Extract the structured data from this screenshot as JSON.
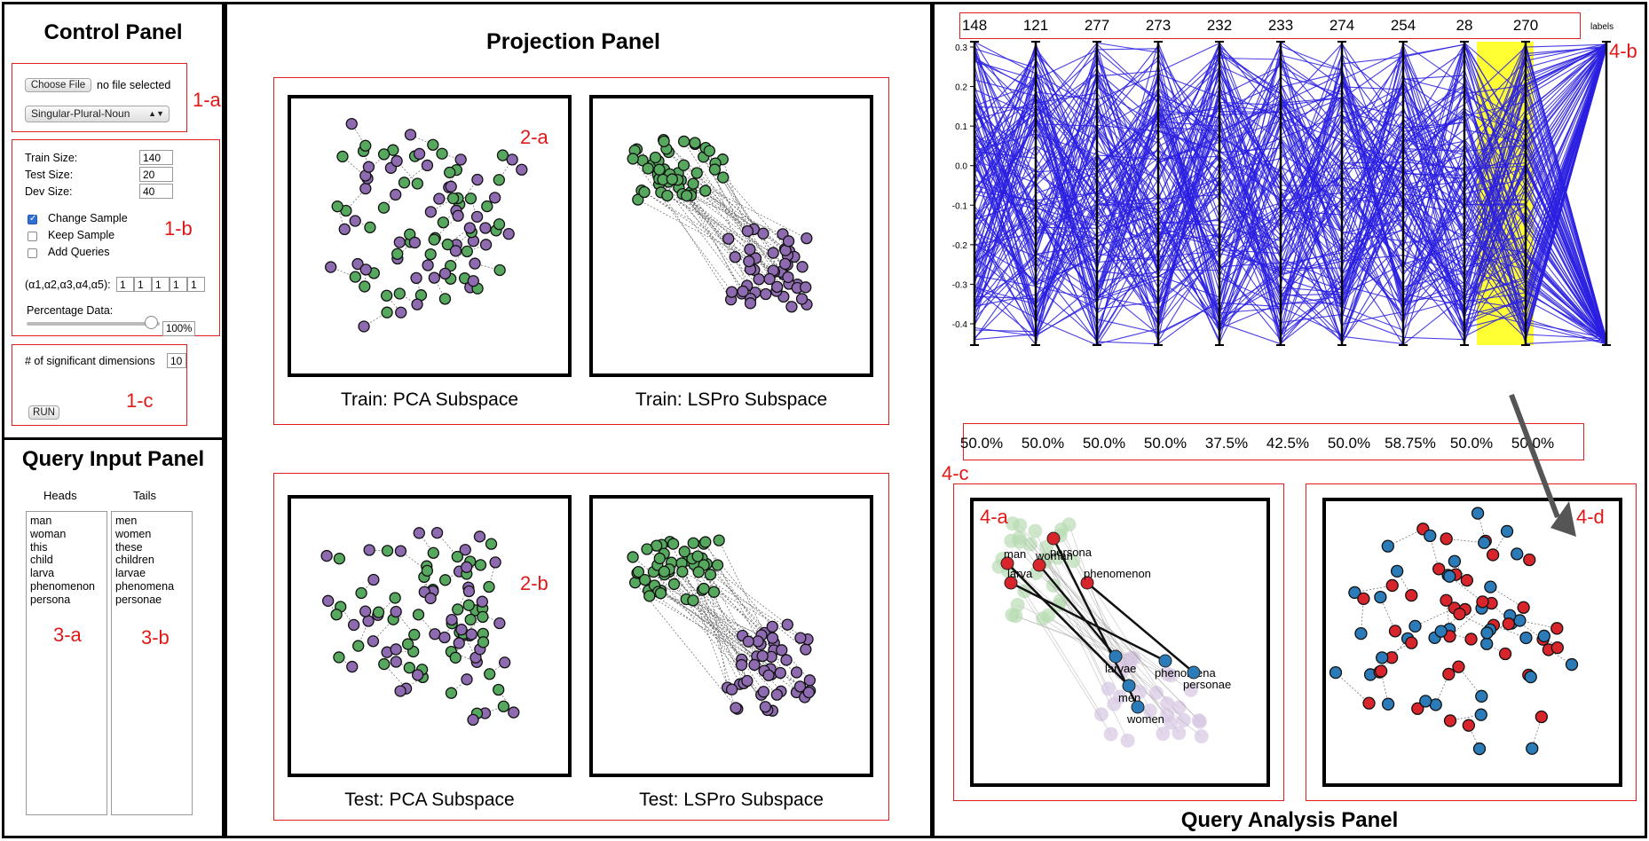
{
  "control": {
    "title": "Control Panel",
    "choose_file": "Choose File",
    "file_status": "no file selected",
    "dataset": "Singular-Plural-Noun",
    "train_label": "Train Size:",
    "train_value": "140",
    "test_label": "Test Size:",
    "test_value": "20",
    "dev_label": "Dev Size:",
    "dev_value": "40",
    "change_sample": "Change Sample",
    "keep_sample": "Keep Sample",
    "add_queries": "Add Queries",
    "alpha_label": "(α1,α2,α3,α4,α5):",
    "alphas": [
      "1",
      "1",
      "1",
      "1",
      "1"
    ],
    "percentage_label": "Percentage Data:",
    "percentage_value": "100%",
    "percentage_fraction": 1.0,
    "dims_label": "# of significant dimensions",
    "dims_value": "10",
    "run": "RUN"
  },
  "query": {
    "title": "Query Input Panel",
    "heads_label": "Heads",
    "tails_label": "Tails",
    "heads_text": "man\nwoman\nthis\nchild\nlarva\nphenomenon\npersona",
    "tails_text": "men\nwomen\nthese\nchildren\nlarvae\nphenomena\npersonae"
  },
  "projection": {
    "title": "Projection Panel",
    "train_pca": "Train: PCA Subspace",
    "train_lspro": "Train: LSPro Subspace",
    "test_pca": "Test: PCA Subspace",
    "test_lspro": "Test: LSPro Subspace"
  },
  "analysis": {
    "title": "Query Analysis Panel",
    "dims": [
      "148",
      "121",
      "277",
      "273",
      "232",
      "233",
      "274",
      "254",
      "28",
      "270"
    ],
    "labels_axis": "labels",
    "percentages": [
      "50.0%",
      "50.0%",
      "50.0%",
      "50.0%",
      "37.5%",
      "42.5%",
      "50.0%",
      "58.75%",
      "50.0%",
      "50.0%"
    ],
    "first_axis_ticks": [
      "0.3",
      "0.2",
      "0.1",
      "0.0",
      "-0.1",
      "-0.2",
      "-0.3",
      "-0.4"
    ],
    "query_words_heads": [
      "man",
      "persona",
      "woman",
      "larva",
      "phenomenon"
    ],
    "query_words_tails": [
      "larvae",
      "phenomena",
      "personae",
      "men",
      "women"
    ]
  },
  "annotations": {
    "a1": "1-a",
    "b1": "1-b",
    "c1": "1-c",
    "a2": "2-a",
    "b2": "2-b",
    "a3": "3-a",
    "b3": "3-b",
    "a4": "4-a",
    "b4": "4-b",
    "c4": "4-c",
    "d4": "4-d"
  },
  "colors": {
    "green": "#55a85e",
    "purple": "#8e6bb0",
    "red": "#d8242b",
    "blue": "#2b7bb9",
    "line_blue": "#2a1fe0",
    "highlight": "#ffff33",
    "annotation": "#e01818"
  }
}
